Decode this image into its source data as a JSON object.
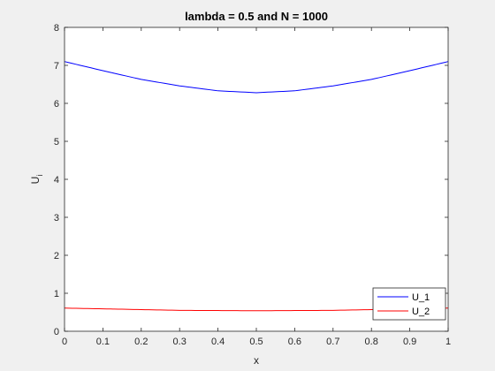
{
  "chart_data": {
    "type": "line",
    "title": "lambda = 0.5 and N = 1000",
    "xlabel": "x",
    "ylabel_main": "U",
    "ylabel_sub": "i",
    "xlim": [
      0,
      1
    ],
    "ylim": [
      0,
      8
    ],
    "xticks": [
      0,
      0.1,
      0.2,
      0.3,
      0.4,
      0.5,
      0.6,
      0.7,
      0.8,
      0.9,
      1
    ],
    "xtick_labels": [
      "0",
      "0.1",
      "0.2",
      "0.3",
      "0.4",
      "0.5",
      "0.6",
      "0.7",
      "0.8",
      "0.9",
      "1"
    ],
    "yticks": [
      0,
      1,
      2,
      3,
      4,
      5,
      6,
      7,
      8
    ],
    "ytick_labels": [
      "0",
      "1",
      "2",
      "3",
      "4",
      "5",
      "6",
      "7",
      "8"
    ],
    "grid": false,
    "legend_position": "bottom-right",
    "series": [
      {
        "name": "U_1",
        "color": "#0000ff",
        "x": [
          0,
          0.1,
          0.2,
          0.3,
          0.4,
          0.5,
          0.6,
          0.7,
          0.8,
          0.9,
          1
        ],
        "y": [
          7.1,
          6.86,
          6.63,
          6.46,
          6.33,
          6.28,
          6.33,
          6.46,
          6.63,
          6.86,
          7.1
        ]
      },
      {
        "name": "U_2",
        "color": "#ff0000",
        "x": [
          0,
          0.1,
          0.2,
          0.3,
          0.4,
          0.5,
          0.6,
          0.7,
          0.8,
          0.9,
          1
        ],
        "y": [
          0.61,
          0.59,
          0.57,
          0.55,
          0.545,
          0.54,
          0.545,
          0.55,
          0.57,
          0.59,
          0.61
        ]
      }
    ]
  }
}
